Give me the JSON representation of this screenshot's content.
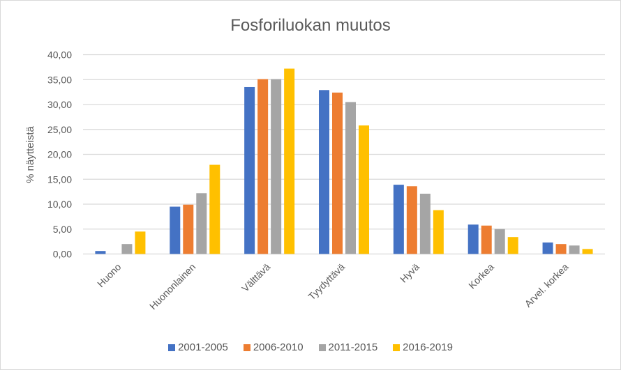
{
  "chart_data": {
    "type": "bar",
    "title": "Fosforiluokan muutos",
    "xlabel": "",
    "ylabel": "% näytteistä",
    "ylim": [
      0,
      40
    ],
    "yticks": [
      "0,00",
      "5,00",
      "10,00",
      "15,00",
      "20,00",
      "25,00",
      "30,00",
      "35,00",
      "40,00"
    ],
    "grid": true,
    "legend_position": "bottom",
    "categories": [
      "Huono",
      "Huononlainen",
      "Välttävä",
      "Tyydyttävä",
      "Hyvä",
      "Korkea",
      "Arvel. korkea"
    ],
    "series": [
      {
        "name": "2001-2005",
        "color": "#4472C4",
        "values": [
          0.6,
          9.5,
          33.5,
          32.9,
          13.9,
          5.9,
          2.3
        ]
      },
      {
        "name": "2006-2010",
        "color": "#ED7D31",
        "values": [
          0.0,
          9.9,
          35.1,
          32.4,
          13.6,
          5.7,
          2.0
        ]
      },
      {
        "name": "2011-2015",
        "color": "#A5A5A5",
        "values": [
          2.0,
          12.2,
          35.1,
          30.5,
          12.1,
          5.0,
          1.7
        ]
      },
      {
        "name": "2016-2019",
        "color": "#FFC000",
        "values": [
          4.5,
          17.9,
          37.2,
          25.8,
          8.8,
          3.4,
          1.0
        ]
      }
    ]
  }
}
